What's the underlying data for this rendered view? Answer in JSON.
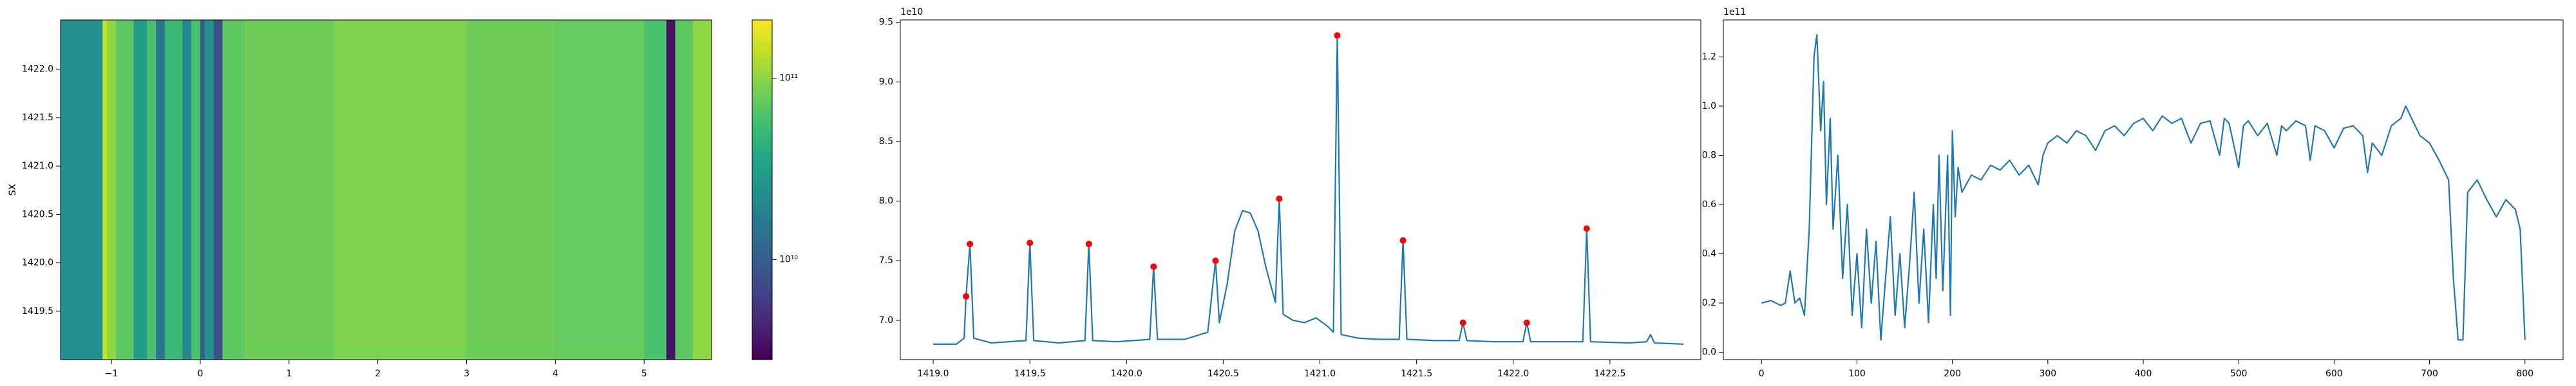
{
  "chart_data": [
    {
      "type": "heatmap",
      "y_label": "SX",
      "colormap": "viridis",
      "xlim": [
        -1.574,
        5.76
      ],
      "ylim": [
        1419.0,
        1422.51
      ],
      "xticks": [
        {
          "value": -1,
          "label": "−1"
        },
        0,
        1,
        2,
        3,
        4,
        5
      ],
      "yticks": [
        1419.5,
        {
          "value": 1420,
          "label": "1420.0"
        },
        1420.5,
        {
          "value": 1421,
          "label": "1421.0"
        },
        1421.5,
        {
          "value": 1422,
          "label": "1422.0"
        }
      ],
      "x_edges": [
        -1.574,
        -1.1,
        -1.05,
        -0.95,
        -0.75,
        -0.6,
        -0.5,
        -0.4,
        -0.2,
        -0.1,
        0.0,
        0.05,
        0.15,
        0.25,
        0.5,
        1.5,
        3.0,
        4.0,
        5.0,
        5.25,
        5.35,
        5.55,
        5.76
      ],
      "values": [
        24000000000,
        150000000000,
        100000000000,
        70000000000,
        30000000000,
        60000000000,
        15000000000,
        50000000000,
        20000000000,
        60000000000,
        10000000000,
        25000000000,
        8000000000,
        70000000000,
        80000000000,
        90000000000,
        80000000000,
        75000000000,
        60000000000,
        3500000000,
        70000000000,
        100000000000
      ],
      "colorbar": {
        "scale": "log",
        "lim": [
          2800000000,
          210000000000
        ],
        "ticks": [
          {
            "value": 10000000000,
            "label": "10¹⁰"
          },
          {
            "value": 100000000000,
            "label": "10¹¹"
          }
        ]
      }
    },
    {
      "type": "line",
      "offset_label": "1e10",
      "xlim": [
        1418.83,
        1422.97
      ],
      "ylim": [
        6.67,
        9.52
      ],
      "xticks": [
        {
          "value": 1419,
          "label": "1419.0"
        },
        1419.5,
        {
          "value": 1420,
          "label": "1420.0"
        },
        1420.5,
        {
          "value": 1421,
          "label": "1421.0"
        },
        1421.5,
        {
          "value": 1422,
          "label": "1422.0"
        },
        1422.5
      ],
      "yticks": [
        {
          "value": 7,
          "label": "7.0"
        },
        7.5,
        {
          "value": 8,
          "label": "8.0"
        },
        8.5,
        {
          "value": 9,
          "label": "9.0"
        },
        9.5
      ],
      "x": [
        1419.0,
        1419.12,
        1419.16,
        1419.17,
        1419.19,
        1419.21,
        1419.3,
        1419.48,
        1419.5,
        1419.52,
        1419.65,
        1419.785,
        1419.805,
        1419.825,
        1419.95,
        1420.12,
        1420.14,
        1420.16,
        1420.3,
        1420.42,
        1420.46,
        1420.48,
        1420.52,
        1420.56,
        1420.6,
        1420.64,
        1420.68,
        1420.72,
        1420.77,
        1420.79,
        1420.81,
        1420.86,
        1420.92,
        1420.98,
        1421.04,
        1421.07,
        1421.09,
        1421.11,
        1421.2,
        1421.3,
        1421.41,
        1421.43,
        1421.45,
        1421.6,
        1421.72,
        1421.74,
        1421.76,
        1421.9,
        1422.05,
        1422.07,
        1422.09,
        1422.2,
        1422.36,
        1422.38,
        1422.4,
        1422.6,
        1422.69,
        1422.71,
        1422.73,
        1422.88
      ],
      "series": [
        {
          "color": "#1f77b4",
          "values": [
            6.8,
            6.8,
            6.85,
            7.2,
            7.64,
            6.85,
            6.81,
            6.83,
            7.65,
            6.83,
            6.81,
            6.83,
            7.64,
            6.83,
            6.82,
            6.84,
            7.45,
            6.84,
            6.84,
            6.9,
            7.5,
            6.98,
            7.3,
            7.75,
            7.92,
            7.9,
            7.75,
            7.45,
            7.15,
            8.02,
            7.05,
            7.0,
            6.98,
            7.02,
            6.95,
            6.9,
            9.39,
            6.88,
            6.85,
            6.84,
            6.84,
            7.67,
            6.84,
            6.83,
            6.83,
            6.98,
            6.83,
            6.82,
            6.82,
            6.98,
            6.82,
            6.82,
            6.82,
            7.77,
            6.82,
            6.81,
            6.82,
            6.88,
            6.81,
            6.8
          ]
        }
      ],
      "peaks": {
        "color": "#ff0000",
        "x": [
          1419.17,
          1419.19,
          1419.5,
          1419.805,
          1420.14,
          1420.46,
          1420.79,
          1421.09,
          1421.43,
          1421.74,
          1422.07,
          1422.38
        ],
        "values": [
          7.2,
          7.64,
          7.65,
          7.64,
          7.45,
          7.5,
          8.02,
          9.39,
          7.67,
          6.98,
          6.98,
          7.77
        ]
      }
    },
    {
      "type": "line",
      "offset_label": "1e11",
      "xlim": [
        -40,
        840
      ],
      "ylim": [
        -0.03,
        1.35
      ],
      "xticks": [
        0,
        100,
        200,
        300,
        400,
        500,
        600,
        700,
        800
      ],
      "yticks": [
        {
          "value": 0,
          "label": "0.0"
        },
        0.2,
        0.4,
        0.6,
        0.8,
        {
          "value": 1,
          "label": "1.0"
        },
        1.2
      ],
      "x": [
        0,
        10,
        20,
        25,
        30,
        35,
        40,
        45,
        50,
        55,
        58,
        62,
        65,
        68,
        72,
        75,
        80,
        85,
        90,
        95,
        100,
        105,
        110,
        115,
        120,
        125,
        130,
        135,
        140,
        145,
        150,
        155,
        160,
        165,
        170,
        175,
        180,
        183,
        186,
        190,
        195,
        198,
        200,
        203,
        206,
        210,
        220,
        230,
        240,
        250,
        260,
        270,
        280,
        290,
        295,
        300,
        310,
        320,
        330,
        340,
        350,
        360,
        370,
        380,
        390,
        400,
        410,
        420,
        430,
        440,
        450,
        460,
        470,
        480,
        485,
        490,
        500,
        505,
        510,
        520,
        530,
        540,
        545,
        550,
        560,
        570,
        575,
        580,
        590,
        600,
        610,
        620,
        630,
        635,
        640,
        650,
        660,
        670,
        675,
        680,
        690,
        700,
        710,
        720,
        725,
        730,
        735,
        740,
        750,
        760,
        770,
        780,
        790,
        795,
        800
      ],
      "series": [
        {
          "color": "#1f77b4",
          "values": [
            0.2,
            0.21,
            0.19,
            0.2,
            0.33,
            0.2,
            0.22,
            0.15,
            0.5,
            1.2,
            1.29,
            0.9,
            1.1,
            0.6,
            0.95,
            0.5,
            0.8,
            0.3,
            0.6,
            0.15,
            0.4,
            0.1,
            0.5,
            0.2,
            0.45,
            0.05,
            0.3,
            0.55,
            0.15,
            0.4,
            0.1,
            0.35,
            0.65,
            0.2,
            0.5,
            0.12,
            0.6,
            0.3,
            0.8,
            0.25,
            0.8,
            0.15,
            0.9,
            0.55,
            0.75,
            0.65,
            0.72,
            0.7,
            0.76,
            0.74,
            0.78,
            0.72,
            0.76,
            0.68,
            0.8,
            0.85,
            0.88,
            0.85,
            0.9,
            0.88,
            0.82,
            0.9,
            0.92,
            0.88,
            0.93,
            0.95,
            0.9,
            0.96,
            0.93,
            0.95,
            0.85,
            0.93,
            0.94,
            0.8,
            0.95,
            0.93,
            0.75,
            0.92,
            0.94,
            0.88,
            0.93,
            0.8,
            0.92,
            0.9,
            0.94,
            0.92,
            0.78,
            0.92,
            0.9,
            0.83,
            0.91,
            0.92,
            0.88,
            0.73,
            0.85,
            0.8,
            0.92,
            0.95,
            1.0,
            0.96,
            0.88,
            0.85,
            0.78,
            0.7,
            0.3,
            0.05,
            0.05,
            0.65,
            0.7,
            0.62,
            0.55,
            0.62,
            0.58,
            0.5,
            0.05
          ]
        }
      ]
    }
  ]
}
